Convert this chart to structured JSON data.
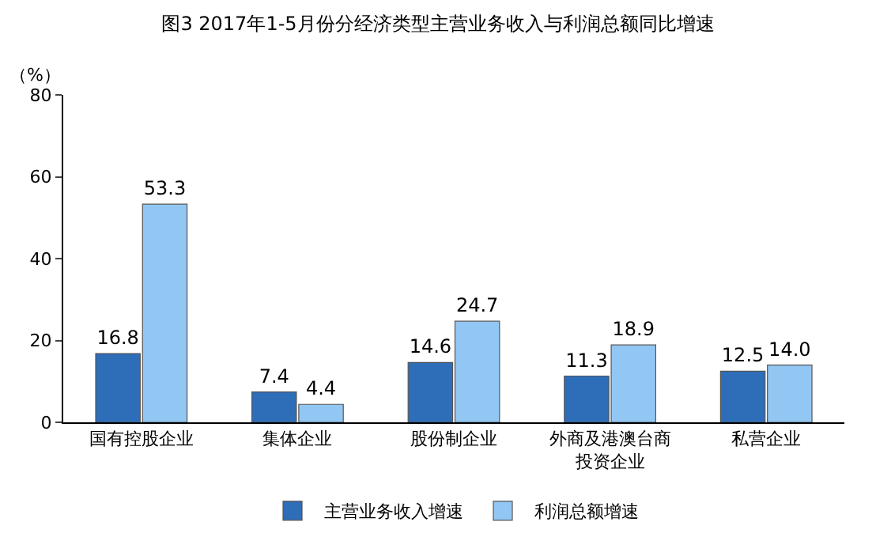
{
  "chart_data": {
    "type": "bar",
    "title": "图3 2017年1-5月份分经济类型主营业务收入与利润总额同比增速",
    "ylabel": "（%）",
    "categories": [
      "国有控股企业",
      "集体企业",
      "股份制企业",
      "外商及港澳台商投资企业",
      "私营企业"
    ],
    "series": [
      {
        "name": "主营业务收入增速",
        "color": "#2e6db8",
        "values": [
          16.8,
          7.4,
          14.6,
          11.3,
          12.5
        ]
      },
      {
        "name": "利润总额增速",
        "color": "#92c7f4",
        "values": [
          53.3,
          4.4,
          24.7,
          18.9,
          14.0
        ],
        "value_labels": [
          "53.3",
          "4.4",
          "24.7",
          "18.9",
          "14.0"
        ]
      }
    ],
    "ylim": [
      0,
      80
    ],
    "yticks": [
      0,
      20,
      40,
      60,
      80
    ],
    "grid": false,
    "legend": "bottom",
    "data_labels": true
  }
}
